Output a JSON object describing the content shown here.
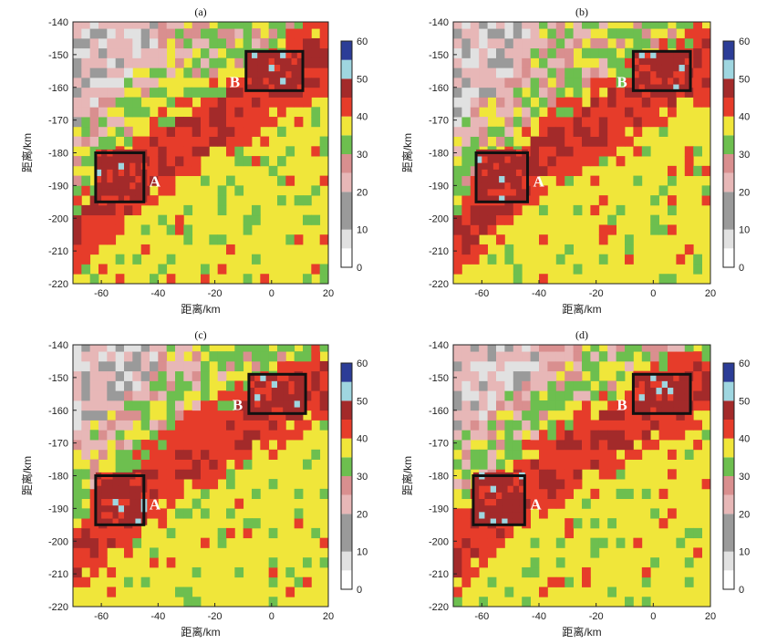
{
  "chart_data": [
    {
      "type": "heatmap",
      "title": "(a)",
      "xlabel": "距离/km",
      "ylabel": "距离/km",
      "xlim": [
        -70,
        20
      ],
      "ylim": [
        -220,
        -140
      ],
      "xticks": [
        -60,
        -40,
        -20,
        0,
        20
      ],
      "yticks": [
        -140,
        -150,
        -160,
        -170,
        -180,
        -190,
        -200,
        -210,
        -220
      ],
      "colorbar": {
        "ticks": [
          0,
          10,
          20,
          30,
          40,
          50,
          60
        ]
      },
      "band_center_y_at_x": [
        [
          -70,
          -208
        ],
        [
          -40,
          -183
        ],
        [
          -10,
          -167
        ],
        [
          20,
          -150
        ]
      ],
      "boxes": [
        {
          "label": "A",
          "x": [
            -62,
            -45
          ],
          "y": [
            -195,
            -180
          ]
        },
        {
          "label": "B",
          "x": [
            -9,
            11
          ],
          "y": [
            -161,
            -149
          ]
        }
      ],
      "variant": 0
    },
    {
      "type": "heatmap",
      "title": "(b)",
      "xlabel": "距离/km",
      "ylabel": "距离/km",
      "xlim": [
        -70,
        20
      ],
      "ylim": [
        -220,
        -140
      ],
      "xticks": [
        -60,
        -40,
        -20,
        0,
        20
      ],
      "yticks": [
        -140,
        -150,
        -160,
        -170,
        -180,
        -190,
        -200,
        -210,
        -220
      ],
      "colorbar": {
        "ticks": [
          0,
          10,
          20,
          30,
          40,
          50,
          60
        ]
      },
      "band_center_y_at_x": [
        [
          -70,
          -208
        ],
        [
          -40,
          -183
        ],
        [
          -10,
          -167
        ],
        [
          20,
          -153
        ]
      ],
      "boxes": [
        {
          "label": "A",
          "x": [
            -62,
            -44
          ],
          "y": [
            -195,
            -180
          ]
        },
        {
          "label": "B",
          "x": [
            -7,
            13
          ],
          "y": [
            -161,
            -149
          ]
        }
      ],
      "variant": 1
    },
    {
      "type": "heatmap",
      "title": "(c)",
      "xlabel": "距离/km",
      "ylabel": "距离/km",
      "xlim": [
        -70,
        20
      ],
      "ylim": [
        -220,
        -140
      ],
      "xticks": [
        -60,
        -40,
        -20,
        0,
        20
      ],
      "yticks": [
        -140,
        -150,
        -160,
        -170,
        -180,
        -190,
        -200,
        -210,
        -220
      ],
      "colorbar": {
        "ticks": [
          0,
          10,
          20,
          30,
          40,
          50,
          60
        ]
      },
      "band_center_y_at_x": [
        [
          -70,
          -205
        ],
        [
          -40,
          -182
        ],
        [
          -10,
          -166
        ],
        [
          20,
          -152
        ]
      ],
      "boxes": [
        {
          "label": "A",
          "x": [
            -62,
            -45
          ],
          "y": [
            -195,
            -180
          ]
        },
        {
          "label": "B",
          "x": [
            -8,
            12
          ],
          "y": [
            -161,
            -149
          ]
        }
      ],
      "variant": 2
    },
    {
      "type": "heatmap",
      "title": "(d)",
      "xlabel": "距离/km",
      "ylabel": "距离/km",
      "xlim": [
        -70,
        20
      ],
      "ylim": [
        -220,
        -140
      ],
      "xticks": [
        -60,
        -40,
        -20,
        0,
        20
      ],
      "yticks": [
        -140,
        -150,
        -160,
        -170,
        -180,
        -190,
        -200,
        -210,
        -220
      ],
      "colorbar": {
        "ticks": [
          0,
          10,
          20,
          30,
          40,
          50,
          60
        ]
      },
      "band_center_y_at_x": [
        [
          -70,
          -205
        ],
        [
          -40,
          -182
        ],
        [
          -10,
          -166
        ],
        [
          20,
          -152
        ]
      ],
      "boxes": [
        {
          "label": "A",
          "x": [
            -63,
            -45
          ],
          "y": [
            -195,
            -180
          ]
        },
        {
          "label": "B",
          "x": [
            -7,
            13
          ],
          "y": [
            -161,
            -149
          ]
        }
      ],
      "variant": 3
    }
  ],
  "colors": {
    "levels": [
      "#ffffff",
      "#e1e1e1",
      "#9a9a9a",
      "#e7b7b7",
      "#d98f8f",
      "#6dbf4f",
      "#f0e63a",
      "#e63c2a",
      "#a32a2a",
      "#9fd6e0",
      "#2c3d97"
    ]
  }
}
